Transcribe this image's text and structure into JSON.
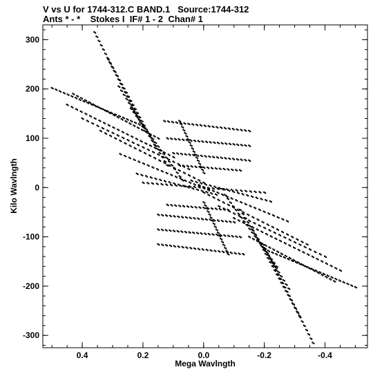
{
  "header": {
    "line1": "V vs U for 1744-312.C BAND.1   Source:1744-312",
    "line2": "Ants * - *    Stokes I  IF# 1 - 2  Chan# 1"
  },
  "chart_data": {
    "type": "scatter",
    "xlabel": "Mega Wavlngth",
    "ylabel": "Kilo Wavlngth",
    "xlim": [
      0.53,
      -0.54
    ],
    "ylim": [
      -325,
      330
    ],
    "x_ticks": [
      0.4,
      0.2,
      0.0,
      -0.2,
      -0.4
    ],
    "x_tick_labels": [
      "0.4",
      "0.2",
      "0.0",
      "-0.2",
      "-0.4"
    ],
    "y_ticks": [
      300,
      200,
      100,
      0,
      -100,
      -200,
      -300
    ],
    "y_tick_labels": [
      "300",
      "200",
      "100",
      "0",
      "-100",
      "-200",
      "-300"
    ],
    "grid": false,
    "point_color": "#000000",
    "tracks": [
      {
        "u_start": 0.36,
        "v_start": 315,
        "u_end": 0.195,
        "v_end": 115,
        "n": 24
      },
      {
        "u_start": 0.315,
        "v_start": 260,
        "u_end": 0.16,
        "v_end": 85,
        "n": 22
      },
      {
        "u_start": 0.28,
        "v_start": 205,
        "u_end": 0.12,
        "v_end": 45,
        "n": 20
      },
      {
        "u_start": 0.24,
        "v_start": 160,
        "u_end": 0.07,
        "v_end": 15,
        "n": 20
      },
      {
        "u_start": 0.5,
        "v_start": 202,
        "u_end": 0.2,
        "v_end": 125,
        "n": 24
      },
      {
        "u_start": 0.43,
        "v_start": 190,
        "u_end": 0.15,
        "v_end": 100,
        "n": 22
      },
      {
        "u_start": 0.45,
        "v_start": 168,
        "u_end": 0.1,
        "v_end": 62,
        "n": 24
      },
      {
        "u_start": 0.4,
        "v_start": 140,
        "u_end": 0.05,
        "v_end": 38,
        "n": 22
      },
      {
        "u_start": 0.34,
        "v_start": 115,
        "u_end": 0.0,
        "v_end": 10,
        "n": 22
      },
      {
        "u_start": 0.275,
        "v_start": 68,
        "u_end": -0.015,
        "v_end": -5,
        "n": 20
      },
      {
        "u_start": 0.22,
        "v_start": 28,
        "u_end": -0.04,
        "v_end": -14,
        "n": 18
      },
      {
        "u_start": 0.2,
        "v_start": 10,
        "u_end": 0.0,
        "v_end": 0,
        "n": 14
      },
      {
        "u_start": -0.36,
        "v_start": -315,
        "u_end": -0.195,
        "v_end": -115,
        "n": 24
      },
      {
        "u_start": -0.315,
        "v_start": -260,
        "u_end": -0.16,
        "v_end": -85,
        "n": 22
      },
      {
        "u_start": -0.28,
        "v_start": -205,
        "u_end": -0.12,
        "v_end": -45,
        "n": 20
      },
      {
        "u_start": -0.24,
        "v_start": -160,
        "u_end": -0.07,
        "v_end": -15,
        "n": 20
      },
      {
        "u_start": -0.5,
        "v_start": -202,
        "u_end": -0.2,
        "v_end": -125,
        "n": 24
      },
      {
        "u_start": -0.43,
        "v_start": -190,
        "u_end": -0.15,
        "v_end": -100,
        "n": 22
      },
      {
        "u_start": -0.45,
        "v_start": -168,
        "u_end": -0.1,
        "v_end": -62,
        "n": 24
      },
      {
        "u_start": -0.4,
        "v_start": -140,
        "u_end": -0.05,
        "v_end": -38,
        "n": 22
      },
      {
        "u_start": -0.34,
        "v_start": -115,
        "u_end": 0.0,
        "v_end": -10,
        "n": 22
      },
      {
        "u_start": -0.275,
        "v_start": -68,
        "u_end": 0.015,
        "v_end": 5,
        "n": 20
      },
      {
        "u_start": -0.22,
        "v_start": -28,
        "u_end": 0.04,
        "v_end": 14,
        "n": 18
      },
      {
        "u_start": -0.2,
        "v_start": -10,
        "u_end": 0.0,
        "v_end": 0,
        "n": 14
      },
      {
        "u_start": 0.13,
        "v_start": 135,
        "u_end": -0.15,
        "v_end": 115,
        "n": 22
      },
      {
        "u_start": 0.12,
        "v_start": 100,
        "u_end": -0.15,
        "v_end": 85,
        "n": 22
      },
      {
        "u_start": 0.1,
        "v_start": 70,
        "u_end": -0.15,
        "v_end": 55,
        "n": 20
      },
      {
        "u_start": 0.08,
        "v_start": 45,
        "u_end": -0.12,
        "v_end": 35,
        "n": 16
      },
      {
        "u_start": -0.13,
        "v_start": -135,
        "u_end": 0.15,
        "v_end": -115,
        "n": 22
      },
      {
        "u_start": -0.12,
        "v_start": -100,
        "u_end": 0.15,
        "v_end": -85,
        "n": 22
      },
      {
        "u_start": -0.1,
        "v_start": -70,
        "u_end": 0.15,
        "v_end": -55,
        "n": 20
      },
      {
        "u_start": -0.08,
        "v_start": -45,
        "u_end": 0.12,
        "v_end": -35,
        "n": 16
      },
      {
        "u_start": 0.08,
        "v_start": 135,
        "u_end": 0.0,
        "v_end": 30,
        "n": 18
      },
      {
        "u_start": -0.08,
        "v_start": -135,
        "u_end": 0.0,
        "v_end": -30,
        "n": 18
      }
    ]
  }
}
